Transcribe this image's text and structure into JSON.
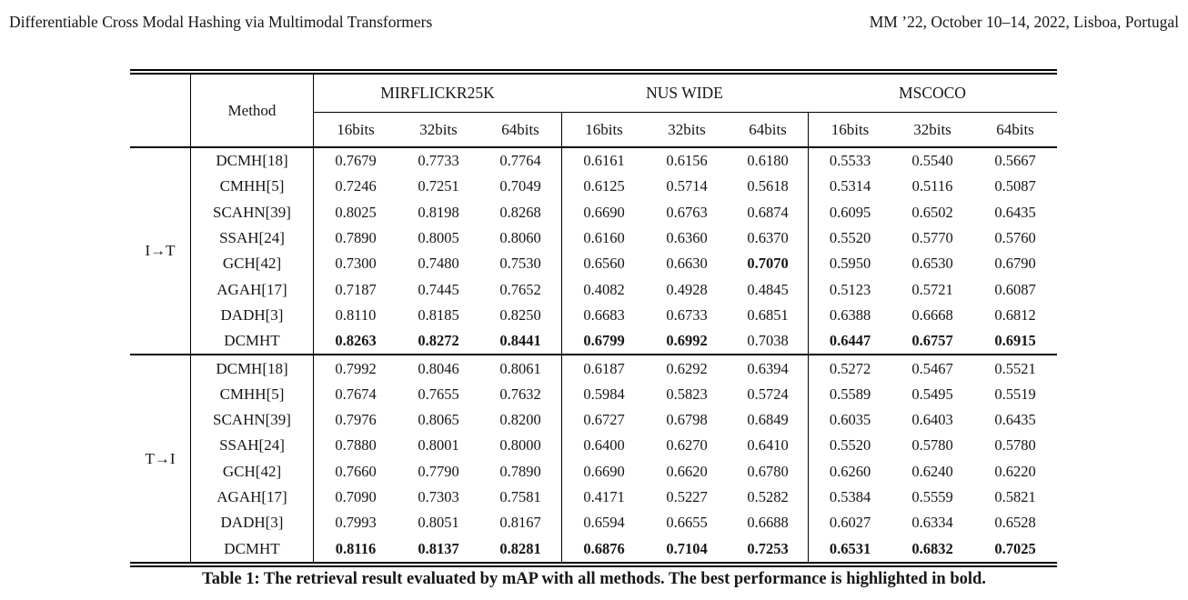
{
  "page_header": {
    "left": "Differentiable Cross Modal Hashing via Multimodal Transformers",
    "right": "MM ’22, October 10–14, 2022, Lisboa, Portugal"
  },
  "table": {
    "method_header": "Method",
    "datasets": [
      "MIRFLICKR25K",
      "NUS WIDE",
      "MSCOCO"
    ],
    "bit_headers": [
      "16bits",
      "32bits",
      "64bits"
    ],
    "groups": [
      {
        "label": "I→T",
        "rows": [
          {
            "method": "DCMH[18]",
            "values": [
              "0.7679",
              "0.7733",
              "0.7764",
              "0.6161",
              "0.6156",
              "0.6180",
              "0.5533",
              "0.5540",
              "0.5667"
            ],
            "bold": []
          },
          {
            "method": "CMHH[5]",
            "values": [
              "0.7246",
              "0.7251",
              "0.7049",
              "0.6125",
              "0.5714",
              "0.5618",
              "0.5314",
              "0.5116",
              "0.5087"
            ],
            "bold": []
          },
          {
            "method": "SCAHN[39]",
            "values": [
              "0.8025",
              "0.8198",
              "0.8268",
              "0.6690",
              "0.6763",
              "0.6874",
              "0.6095",
              "0.6502",
              "0.6435"
            ],
            "bold": []
          },
          {
            "method": "SSAH[24]",
            "values": [
              "0.7890",
              "0.8005",
              "0.8060",
              "0.6160",
              "0.6360",
              "0.6370",
              "0.5520",
              "0.5770",
              "0.5760"
            ],
            "bold": []
          },
          {
            "method": "GCH[42]",
            "values": [
              "0.7300",
              "0.7480",
              "0.7530",
              "0.6560",
              "0.6630",
              "0.7070",
              "0.5950",
              "0.6530",
              "0.6790"
            ],
            "bold": [
              5
            ]
          },
          {
            "method": "AGAH[17]",
            "values": [
              "0.7187",
              "0.7445",
              "0.7652",
              "0.4082",
              "0.4928",
              "0.4845",
              "0.5123",
              "0.5721",
              "0.6087"
            ],
            "bold": []
          },
          {
            "method": "DADH[3]",
            "values": [
              "0.8110",
              "0.8185",
              "0.8250",
              "0.6683",
              "0.6733",
              "0.6851",
              "0.6388",
              "0.6668",
              "0.6812"
            ],
            "bold": []
          },
          {
            "method": "DCMHT",
            "values": [
              "0.8263",
              "0.8272",
              "0.8441",
              "0.6799",
              "0.6992",
              "0.7038",
              "0.6447",
              "0.6757",
              "0.6915"
            ],
            "bold": [
              0,
              1,
              2,
              3,
              4,
              6,
              7,
              8
            ]
          }
        ]
      },
      {
        "label": "T→I",
        "rows": [
          {
            "method": "DCMH[18]",
            "values": [
              "0.7992",
              "0.8046",
              "0.8061",
              "0.6187",
              "0.6292",
              "0.6394",
              "0.5272",
              "0.5467",
              "0.5521"
            ],
            "bold": []
          },
          {
            "method": "CMHH[5]",
            "values": [
              "0.7674",
              "0.7655",
              "0.7632",
              "0.5984",
              "0.5823",
              "0.5724",
              "0.5589",
              "0.5495",
              "0.5519"
            ],
            "bold": []
          },
          {
            "method": "SCAHN[39]",
            "values": [
              "0.7976",
              "0.8065",
              "0.8200",
              "0.6727",
              "0.6798",
              "0.6849",
              "0.6035",
              "0.6403",
              "0.6435"
            ],
            "bold": []
          },
          {
            "method": "SSAH[24]",
            "values": [
              "0.7880",
              "0.8001",
              "0.8000",
              "0.6400",
              "0.6270",
              "0.6410",
              "0.5520",
              "0.5780",
              "0.5780"
            ],
            "bold": []
          },
          {
            "method": "GCH[42]",
            "values": [
              "0.7660",
              "0.7790",
              "0.7890",
              "0.6690",
              "0.6620",
              "0.6780",
              "0.6260",
              "0.6240",
              "0.6220"
            ],
            "bold": []
          },
          {
            "method": "AGAH[17]",
            "values": [
              "0.7090",
              "0.7303",
              "0.7581",
              "0.4171",
              "0.5227",
              "0.5282",
              "0.5384",
              "0.5559",
              "0.5821"
            ],
            "bold": []
          },
          {
            "method": "DADH[3]",
            "values": [
              "0.7993",
              "0.8051",
              "0.8167",
              "0.6594",
              "0.6655",
              "0.6688",
              "0.6027",
              "0.6334",
              "0.6528"
            ],
            "bold": []
          },
          {
            "method": "DCMHT",
            "values": [
              "0.8116",
              "0.8137",
              "0.8281",
              "0.6876",
              "0.7104",
              "0.7253",
              "0.6531",
              "0.6832",
              "0.7025"
            ],
            "bold": [
              0,
              1,
              2,
              3,
              4,
              5,
              6,
              7,
              8
            ]
          }
        ]
      }
    ],
    "caption": "Table 1: The retrieval result evaluated by mAP with all methods. The best performance is highlighted in bold."
  }
}
